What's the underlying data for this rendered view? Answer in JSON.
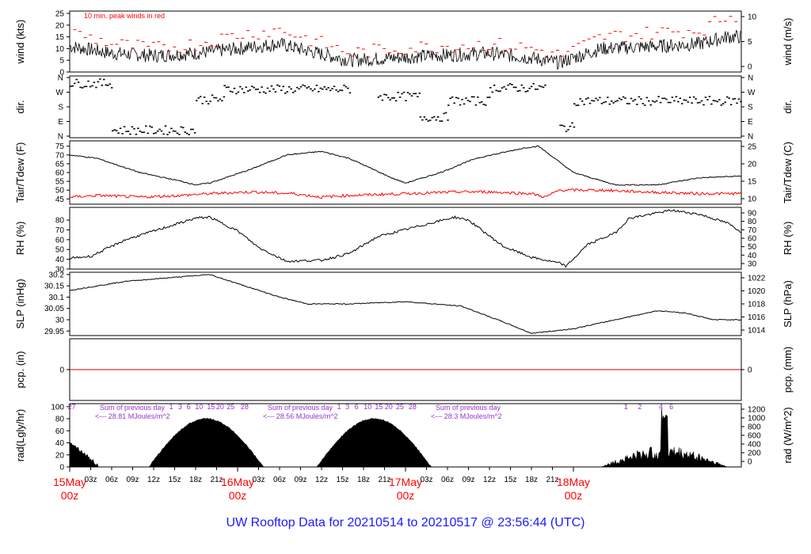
{
  "title": "UW Rooftop Data for 20210514  to  20210517 @ 23:56:44  (UTC)",
  "colors": {
    "title": "#1a1aff",
    "date": "#ff0000",
    "peak": "#ff0000",
    "rad_annot": "#9933cc",
    "trace": "#000000",
    "zero": "#cc0000"
  },
  "x_axis": {
    "hour_ticks": [
      "03z",
      "06z",
      "09z",
      "12z",
      "15z",
      "18z",
      "21z"
    ],
    "day_labels": [
      {
        "date": "15May",
        "time": "00z"
      },
      {
        "date": "16May",
        "time": "00z"
      },
      {
        "date": "17May",
        "time": "00z"
      },
      {
        "date": "18May",
        "time": "00z"
      }
    ]
  },
  "chart_data": [
    {
      "type": "line",
      "name": "wind",
      "ylabel": "wind (kts)",
      "ylabel_right": "wind (m/s)",
      "yticks": [
        0,
        5,
        10,
        15,
        20,
        25
      ],
      "yticks_right": [
        0,
        5,
        10
      ],
      "ylim": [
        0,
        26
      ],
      "annotation": "10 min. peak winds in red",
      "series": [
        {
          "name": "wind",
          "color": "#000000",
          "anchors": [
            [
              0,
              11
            ],
            [
              6,
              8
            ],
            [
              12,
              7
            ],
            [
              18,
              8
            ],
            [
              24,
              10
            ],
            [
              30,
              12
            ],
            [
              34,
              9
            ],
            [
              40,
              5
            ],
            [
              46,
              6
            ],
            [
              52,
              7
            ],
            [
              60,
              8
            ],
            [
              66,
              6
            ],
            [
              70,
              4
            ],
            [
              76,
              10
            ],
            [
              84,
              11
            ],
            [
              90,
              12
            ],
            [
              94,
              15
            ]
          ],
          "noise": 3
        },
        {
          "name": "peak",
          "color": "#ff0000",
          "anchors": [
            [
              0,
              17
            ],
            [
              6,
              12
            ],
            [
              12,
              10
            ],
            [
              18,
              12
            ],
            [
              24,
              16
            ],
            [
              30,
              18
            ],
            [
              34,
              14
            ],
            [
              40,
              8
            ],
            [
              46,
              10
            ],
            [
              52,
              11
            ],
            [
              60,
              12
            ],
            [
              66,
              10
            ],
            [
              70,
              7
            ],
            [
              76,
              15
            ],
            [
              84,
              17
            ],
            [
              90,
              18
            ],
            [
              94,
              24
            ]
          ],
          "noise": 3
        }
      ]
    },
    {
      "type": "scatter",
      "name": "dir",
      "ylabel": "dir.",
      "ylabel_right": "dir.",
      "ytick_labels": [
        "N",
        "E",
        "S",
        "W",
        "N"
      ],
      "segments": [
        [
          0,
          6,
          3.6
        ],
        [
          6,
          18,
          0.4
        ],
        [
          18,
          22,
          2.5
        ],
        [
          22,
          40,
          3.2
        ],
        [
          44,
          50,
          2.7
        ],
        [
          50,
          54,
          1.3
        ],
        [
          54,
          60,
          2.4
        ],
        [
          60,
          68,
          3.3
        ],
        [
          70,
          72,
          0.6
        ],
        [
          72,
          96,
          2.4
        ]
      ]
    },
    {
      "type": "line",
      "name": "temp",
      "ylabel": "Tair/Tdew (F)",
      "ylabel_right": "Tair/Tdew (C)",
      "yticks": [
        45,
        50,
        55,
        60,
        65,
        70,
        75
      ],
      "yticks_right": [
        10,
        15,
        20,
        25
      ],
      "ylim": [
        42,
        78
      ],
      "series": [
        {
          "name": "Tair",
          "color": "#000000",
          "anchors": [
            [
              0,
              70
            ],
            [
              4,
              68
            ],
            [
              10,
              60
            ],
            [
              16,
              55
            ],
            [
              18,
              53
            ],
            [
              20,
              54
            ],
            [
              26,
              62
            ],
            [
              31,
              70
            ],
            [
              36,
              72
            ],
            [
              40,
              68
            ],
            [
              46,
              57
            ],
            [
              48,
              54
            ],
            [
              53,
              60
            ],
            [
              58,
              68
            ],
            [
              65,
              74
            ],
            [
              67,
              75
            ],
            [
              72,
              60
            ],
            [
              78,
              53
            ],
            [
              84,
              53
            ],
            [
              90,
              57
            ],
            [
              96,
              58
            ]
          ],
          "noise": 0.3
        },
        {
          "name": "Tdew",
          "color": "#ff0000",
          "anchors": [
            [
              0,
              46
            ],
            [
              4,
              47
            ],
            [
              10,
              46
            ],
            [
              16,
              47
            ],
            [
              20,
              48
            ],
            [
              26,
              49
            ],
            [
              32,
              48
            ],
            [
              36,
              46
            ],
            [
              40,
              47
            ],
            [
              48,
              48
            ],
            [
              56,
              49
            ],
            [
              60,
              49
            ],
            [
              66,
              48
            ],
            [
              68,
              46
            ],
            [
              70,
              50
            ],
            [
              76,
              50
            ],
            [
              82,
              49
            ],
            [
              90,
              48
            ],
            [
              96,
              48
            ]
          ],
          "noise": 0.8
        }
      ]
    },
    {
      "type": "line",
      "name": "rh",
      "ylabel": "RH (%)",
      "ylabel_right": "RH (%)",
      "yticks": [
        30,
        40,
        50,
        60,
        70,
        80
      ],
      "yticks_right": [
        30,
        40,
        50,
        60,
        70,
        80,
        90
      ],
      "ylim": [
        30,
        93
      ],
      "series": [
        {
          "name": "RH",
          "color": "#000000",
          "anchors": [
            [
              0,
              41
            ],
            [
              3,
              43
            ],
            [
              8,
              60
            ],
            [
              13,
              71
            ],
            [
              18,
              82
            ],
            [
              20,
              83
            ],
            [
              24,
              69
            ],
            [
              27,
              52
            ],
            [
              31,
              38
            ],
            [
              36,
              39
            ],
            [
              40,
              46
            ],
            [
              44,
              63
            ],
            [
              50,
              74
            ],
            [
              55,
              83
            ],
            [
              57,
              80
            ],
            [
              62,
              53
            ],
            [
              66,
              42
            ],
            [
              70,
              36
            ],
            [
              71,
              33
            ],
            [
              74,
              55
            ],
            [
              78,
              67
            ],
            [
              80,
              82
            ],
            [
              86,
              90
            ],
            [
              90,
              86
            ],
            [
              94,
              77
            ],
            [
              96,
              68
            ]
          ],
          "noise": 1.2
        }
      ]
    },
    {
      "type": "line",
      "name": "slp",
      "ylabel": "SLP (inHg)",
      "ylabel_right": "SLP (hPa)",
      "yticks": [
        29.95,
        30.0,
        30.05,
        30.1,
        30.15,
        30.2
      ],
      "yticks_right": [
        1014,
        1016,
        1018,
        1020,
        1022
      ],
      "ylim": [
        29.93,
        30.21
      ],
      "series": [
        {
          "name": "SLP",
          "color": "#000000",
          "anchors": [
            [
              0,
              30.13
            ],
            [
              4,
              30.15
            ],
            [
              8,
              30.17
            ],
            [
              12,
              30.18
            ],
            [
              16,
              30.19
            ],
            [
              20,
              30.2
            ],
            [
              24,
              30.16
            ],
            [
              30,
              30.1
            ],
            [
              34,
              30.07
            ],
            [
              40,
              30.07
            ],
            [
              48,
              30.08
            ],
            [
              56,
              30.06
            ],
            [
              62,
              29.99
            ],
            [
              66,
              29.94
            ],
            [
              72,
              29.96
            ],
            [
              78,
              30.0
            ],
            [
              84,
              30.04
            ],
            [
              88,
              30.03
            ],
            [
              92,
              30.0
            ],
            [
              96,
              30.0
            ]
          ],
          "noise": 0.002
        }
      ]
    },
    {
      "type": "line",
      "name": "pcp",
      "ylabel": "pcp. (in)",
      "ylabel_right": "pcp. (mm)",
      "yticks": [
        0
      ],
      "yticks_right": [
        0
      ],
      "ylim": [
        -0.4,
        0.4
      ],
      "series": [
        {
          "name": "pcp",
          "color": "#cc0000",
          "anchors": [
            [
              0,
              0
            ],
            [
              96,
              0
            ]
          ],
          "noise": 0
        }
      ]
    },
    {
      "type": "area",
      "name": "rad",
      "ylabel": "rad(Lgly/hr)",
      "ylabel_right": "rad (W/m^2)",
      "yticks": [
        0,
        20,
        40,
        60,
        80,
        100
      ],
      "yticks_right": [
        0,
        200,
        400,
        600,
        800,
        1000,
        1200
      ],
      "ylim": [
        0,
        105
      ],
      "days": [
        {
          "summary": [
            "Sum of previous day",
            "<--- 28.81 MJoules/m^2"
          ],
          "hours": [
            "27",
            "1",
            "3",
            "6",
            "10",
            "15",
            "20",
            "25",
            "28"
          ]
        },
        {
          "summary": [
            "Sum of previous day",
            "<--- 28.56 MJoules/m^2"
          ],
          "hours": [
            "1",
            "3",
            "6",
            "10",
            "15",
            "20",
            "25",
            "28"
          ]
        },
        {
          "summary": [
            "Sum of previous day",
            "<--- 28.3 MJoules/m^2"
          ],
          "hours": [
            "1",
            "2",
            "4",
            "6"
          ]
        }
      ]
    }
  ]
}
